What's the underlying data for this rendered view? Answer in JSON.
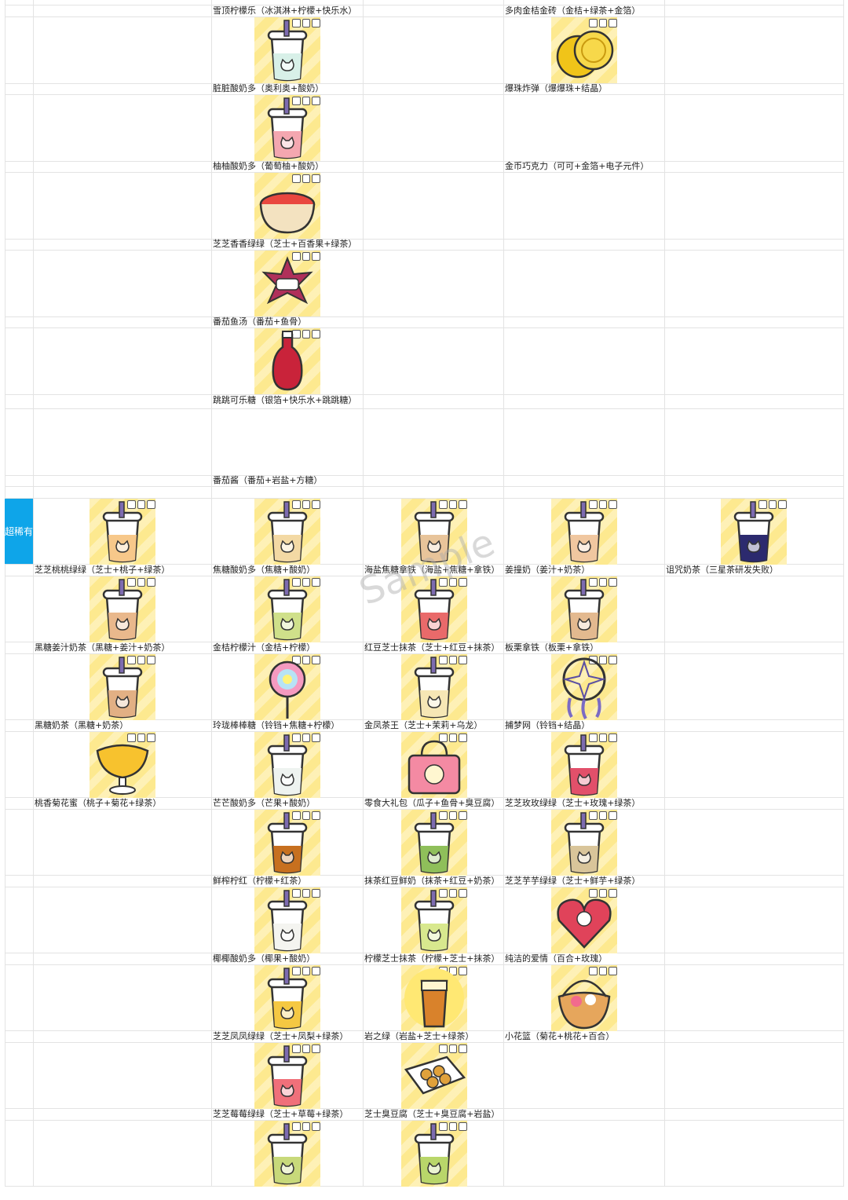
{
  "rarity_label": "超稀有",
  "watermark": "Sample",
  "upper_col_c": [
    {
      "name": "雪顶柠檬乐（冰淇淋+柠檬+快乐水）",
      "icon": "cup",
      "fill": "#cfeedd"
    },
    {
      "name": "脏脏酸奶多（奥利奥+酸奶）",
      "icon": "cup",
      "fill": "#d8f0e8"
    },
    {
      "name": "柚柚酸奶多（葡萄柚+酸奶）",
      "icon": "cup",
      "fill": "#f4a7b0"
    },
    {
      "name": "芝芝香香绿绿（芝士+百香果+绿茶）",
      "icon": "pot",
      "fill": "#e9473f"
    },
    {
      "name": "番茄鱼汤（番茄+鱼骨）",
      "icon": "star",
      "fill": "#b0305a"
    },
    {
      "name": "跳跳可乐糖（银箔+快乐水+跳跳糖）",
      "icon": "bottle",
      "fill": "#c9233a"
    },
    {
      "name": "番茄酱（番茄+岩盐+方糖）",
      "icon": "none",
      "fill": ""
    }
  ],
  "upper_col_e": [
    {
      "name": "多肉金桔金砖（金桔+绿茶+金箔）",
      "icon": "orb",
      "fill": "#f7a41d"
    },
    {
      "name": "爆珠炸弹（爆爆珠+结晶）",
      "icon": "coin",
      "fill": "#f0c419"
    },
    {
      "name": "金币巧克力（可可+金箔+电子元件）",
      "icon": "none",
      "fill": ""
    }
  ],
  "super_rare_grid": [
    [
      {
        "name": "芝芝桃桃绿绿（芝士+桃子+绿茶）",
        "icon": "cup",
        "fill": "#f7c88a"
      },
      {
        "name": "焦糖酸奶多（焦糖+酸奶）",
        "icon": "cup",
        "fill": "#f3d9a4"
      },
      {
        "name": "海盐焦糖拿铁（海盐+焦糖+拿铁）",
        "icon": "cup",
        "fill": "#e8c49a"
      },
      {
        "name": "姜撞奶（姜汁+奶茶）",
        "icon": "cup",
        "fill": "#f0c7a0"
      },
      {
        "name": "诅咒奶茶（三星茶研发失败）",
        "icon": "cup",
        "fill": "#2c2a6e"
      }
    ],
    [
      {
        "name": "黑糖姜汁奶茶（黑糖+姜汁+奶茶）",
        "icon": "cup",
        "fill": "#e9b88c"
      },
      {
        "name": "金桔柠檬汁（金桔+柠檬）",
        "icon": "cup",
        "fill": "#cfe08a"
      },
      {
        "name": "红豆芝士抹茶（芝士+红豆+抹茶）",
        "icon": "cup",
        "fill": "#e96a6a"
      },
      {
        "name": "板栗拿铁（板栗+拿铁）",
        "icon": "cup",
        "fill": "#e3b98f"
      }
    ],
    [
      {
        "name": "黑糖奶茶（黑糖+奶茶）",
        "icon": "cup",
        "fill": "#e2b084"
      },
      {
        "name": "玲珑棒棒糖（铃铛+焦糖+柠檬）",
        "icon": "lolly",
        "fill": "#f59ac0"
      },
      {
        "name": "金凤茶王（芝士+茉莉+乌龙）",
        "icon": "cup",
        "fill": "#f6e7b5"
      },
      {
        "name": "捕梦网（铃铛+结晶）",
        "icon": "dream",
        "fill": "#5b4fa3"
      }
    ],
    [
      {
        "name": "桃香菊花蜜（桃子+菊花+绿茶）",
        "icon": "goblet",
        "fill": "#f7c22e"
      },
      {
        "name": "芒芒酸奶多（芒果+酸奶）",
        "icon": "cup",
        "fill": "#eef3f0"
      },
      {
        "name": "零食大礼包（瓜子+鱼骨+臭豆腐）",
        "icon": "bag",
        "fill": "#f48aa3"
      },
      {
        "name": "芝芝玫玫绿绿（芝士+玫瑰+绿茶）",
        "icon": "cup",
        "fill": "#e2506a"
      }
    ],
    [
      {
        "name": "",
        "icon": "none",
        "fill": ""
      },
      {
        "name": "鲜榨柠红（柠檬+红茶）",
        "icon": "cup",
        "fill": "#c7701f"
      },
      {
        "name": "抹茶红豆鲜奶（抹茶+红豆+奶茶）",
        "icon": "cup",
        "fill": "#8fbf5a"
      },
      {
        "name": "芝芝芋芋绿绿（芝士+鲜芋+绿茶）",
        "icon": "cup",
        "fill": "#d9c59a"
      }
    ],
    [
      {
        "name": "",
        "icon": "none",
        "fill": ""
      },
      {
        "name": "椰椰酸奶多（椰果+酸奶）",
        "icon": "cup",
        "fill": "#f4f4f0"
      },
      {
        "name": "柠檬芝士抹茶（柠檬+芝士+抹茶）",
        "icon": "cup",
        "fill": "#d8e88e"
      },
      {
        "name": "纯洁的爱情（百合+玫瑰）",
        "icon": "heart",
        "fill": "#e0435a"
      }
    ],
    [
      {
        "name": "",
        "icon": "none",
        "fill": ""
      },
      {
        "name": "芝芝凤凤绿绿（芝士+凤梨+绿茶）",
        "icon": "cup",
        "fill": "#f5c842"
      },
      {
        "name": "岩之绿（岩盐+芝士+绿茶）",
        "icon": "glass",
        "fill": "#d9822b"
      },
      {
        "name": "小花篮（菊花+桃花+百合）",
        "icon": "basket",
        "fill": "#e6a65c"
      }
    ],
    [
      {
        "name": "",
        "icon": "none",
        "fill": ""
      },
      {
        "name": "芝芝莓莓绿绿（芝士+草莓+绿茶）",
        "icon": "cup",
        "fill": "#f0707a"
      },
      {
        "name": "芝士臭豆腐（芝士+臭豆腐+岩盐）",
        "icon": "box",
        "fill": "#e0a13b"
      },
      {
        "name": "",
        "icon": "none",
        "fill": ""
      }
    ],
    [
      {
        "name": "",
        "icon": "none",
        "fill": ""
      },
      {
        "name": "",
        "icon": "cup",
        "fill": "#c8d97a"
      },
      {
        "name": "",
        "icon": "cup",
        "fill": "#b9d66a"
      },
      {
        "name": "",
        "icon": "none",
        "fill": ""
      }
    ]
  ]
}
